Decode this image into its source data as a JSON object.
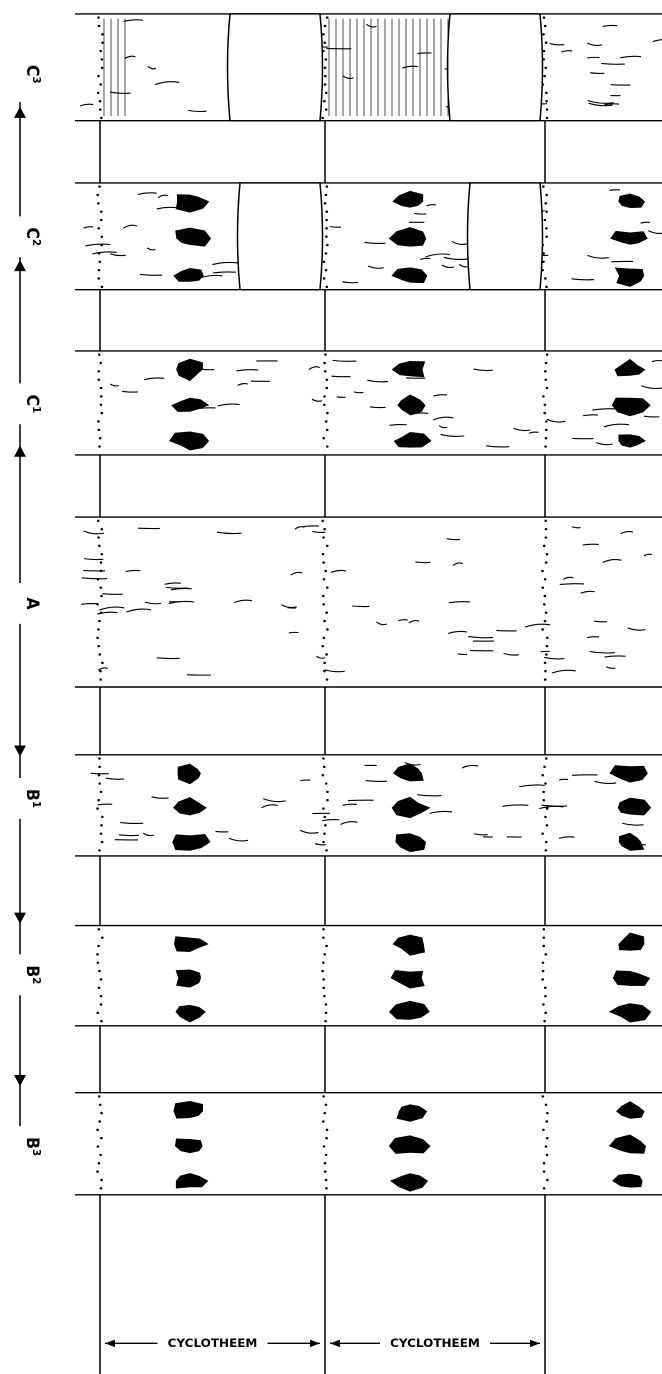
{
  "units": [
    {
      "letter": "C",
      "index": "3"
    },
    {
      "letter": "C",
      "index": "2"
    },
    {
      "letter": "C",
      "index": "1"
    },
    {
      "letter": "A",
      "index": null
    },
    {
      "letter": "B",
      "index": "1"
    },
    {
      "letter": "B",
      "index": "2"
    },
    {
      "letter": "B",
      "index": "3"
    }
  ],
  "cyclothems": [
    "CYCLOTHEEM",
    "CYCLOTHEEM"
  ]
}
